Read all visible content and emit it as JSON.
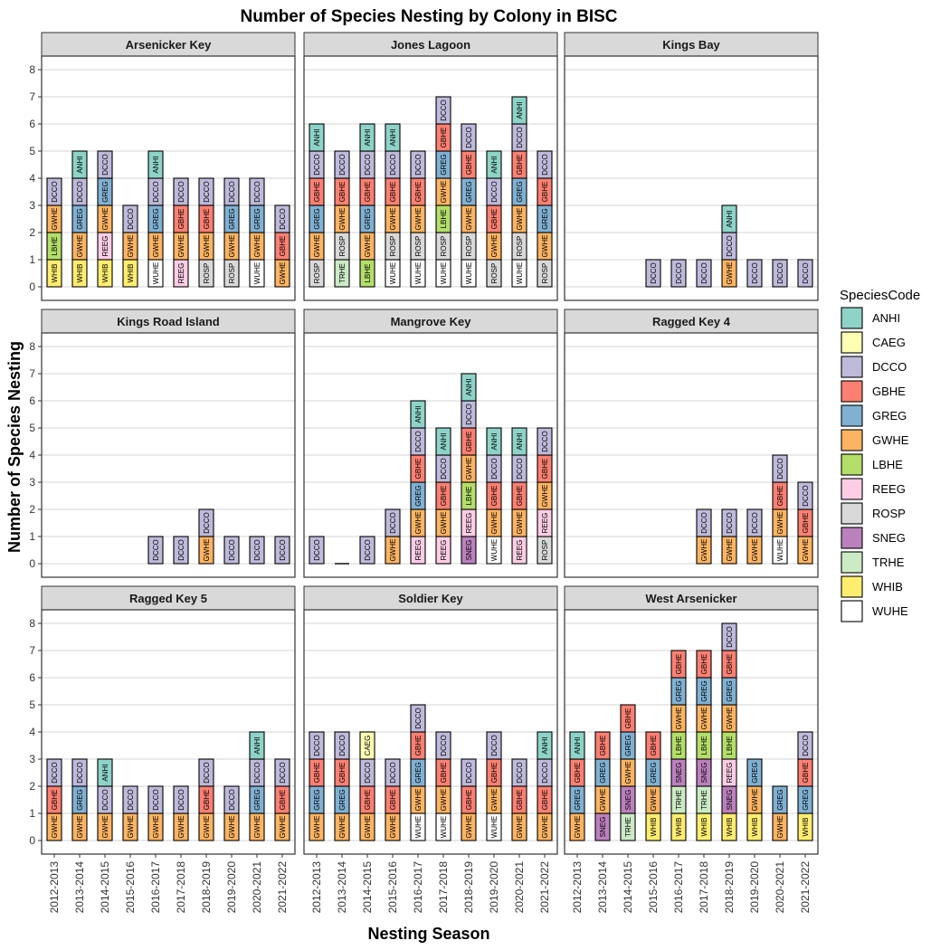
{
  "chart_data": {
    "type": "bar",
    "title": "Number of Species Nesting by Colony in BISC",
    "xlabel": "Nesting Season",
    "ylabel": "Number of Species Nesting",
    "ylim": [
      0,
      8
    ],
    "yticks": [
      "0",
      "1",
      "2",
      "3",
      "4",
      "5",
      "6",
      "7",
      "8"
    ],
    "seasons": [
      "2012-2013",
      "2013-2014",
      "2014-2015",
      "2015-2016",
      "2016-2017",
      "2017-2018",
      "2018-2019",
      "2019-2020",
      "2020-2021",
      "2021-2022"
    ],
    "legend_title": "SpeciesCode",
    "species": [
      {
        "code": "ANHI",
        "color": "#8dd3c7"
      },
      {
        "code": "CAEG",
        "color": "#ffffb3"
      },
      {
        "code": "DCCO",
        "color": "#bebada"
      },
      {
        "code": "GBHE",
        "color": "#fb8072"
      },
      {
        "code": "GREG",
        "color": "#80b1d3"
      },
      {
        "code": "GWHE",
        "color": "#fdb462"
      },
      {
        "code": "LBHE",
        "color": "#b3de69"
      },
      {
        "code": "REEG",
        "color": "#fccde5"
      },
      {
        "code": "ROSP",
        "color": "#d9d9d9"
      },
      {
        "code": "SNEG",
        "color": "#bc80bd"
      },
      {
        "code": "TRHE",
        "color": "#ccebc5"
      },
      {
        "code": "WHIB",
        "color": "#ffed6f"
      },
      {
        "code": "WUHE",
        "color": "#ffffff"
      }
    ],
    "panels": [
      {
        "name": "Arsenicker Key",
        "stacks": [
          [
            "WHIB",
            "LBHE",
            "GWHE",
            "DCCO"
          ],
          [
            "WHIB",
            "GWHE",
            "GREG",
            "DCCO",
            "ANHI"
          ],
          [
            "WHIB",
            "REEG",
            "GWHE",
            "GREG",
            "DCCO"
          ],
          [
            "WHIB",
            "GWHE",
            "DCCO"
          ],
          [
            "WUHE",
            "GWHE",
            "GREG",
            "DCCO",
            "ANHI"
          ],
          [
            "REEG",
            "GWHE",
            "GBHE",
            "DCCO"
          ],
          [
            "ROSP",
            "GWHE",
            "GBHE",
            "DCCO"
          ],
          [
            "ROSP",
            "GWHE",
            "GREG",
            "DCCO"
          ],
          [
            "WUHE",
            "GWHE",
            "GREG",
            "DCCO"
          ],
          [
            "GWHE",
            "GBHE",
            "DCCO"
          ]
        ]
      },
      {
        "name": "Jones Lagoon",
        "stacks": [
          [
            "ROSP",
            "GWHE",
            "GREG",
            "GBHE",
            "DCCO",
            "ANHI"
          ],
          [
            "TRHE",
            "ROSP",
            "GWHE",
            "GBHE",
            "DCCO"
          ],
          [
            "LBHE",
            "GWHE",
            "GREG",
            "GBHE",
            "DCCO",
            "ANHI"
          ],
          [
            "WUHE",
            "ROSP",
            "GWHE",
            "GBHE",
            "DCCO",
            "ANHI"
          ],
          [
            "WUHE",
            "ROSP",
            "GWHE",
            "GBHE",
            "DCCO"
          ],
          [
            "WUHE",
            "ROSP",
            "LBHE",
            "GWHE",
            "GREG",
            "GBHE",
            "DCCO"
          ],
          [
            "WUHE",
            "ROSP",
            "GWHE",
            "GREG",
            "GBHE",
            "DCCO"
          ],
          [
            "ROSP",
            "GWHE",
            "GBHE",
            "DCCO",
            "ANHI"
          ],
          [
            "WUHE",
            "ROSP",
            "GWHE",
            "GREG",
            "GBHE",
            "DCCO",
            "ANHI"
          ],
          [
            "ROSP",
            "GWHE",
            "GREG",
            "GBHE",
            "DCCO"
          ]
        ]
      },
      {
        "name": "Kings Bay",
        "stacks": [
          [],
          [],
          [],
          [
            "DCCO"
          ],
          [
            "DCCO"
          ],
          [
            "DCCO"
          ],
          [
            "GWHE",
            "DCCO",
            "ANHI"
          ],
          [
            "DCCO"
          ],
          [
            "DCCO"
          ],
          [
            "DCCO"
          ]
        ]
      },
      {
        "name": "Kings Road Island",
        "stacks": [
          [],
          [],
          [],
          [],
          [
            "DCCO"
          ],
          [
            "DCCO"
          ],
          [
            "GWHE",
            "DCCO"
          ],
          [
            "DCCO"
          ],
          [
            "DCCO"
          ],
          [
            "DCCO"
          ]
        ]
      },
      {
        "name": "Mangrove Key",
        "stacks": [
          [
            "DCCO"
          ],
          [],
          [
            "DCCO"
          ],
          [
            "GWHE",
            "DCCO"
          ],
          [
            "REEG",
            "GWHE",
            "GREG",
            "GBHE",
            "DCCO",
            "ANHI"
          ],
          [
            "REEG",
            "GWHE",
            "GBHE",
            "DCCO",
            "ANHI"
          ],
          [
            "SNEG",
            "REEG",
            "LBHE",
            "GWHE",
            "GBHE",
            "DCCO",
            "ANHI"
          ],
          [
            "WUHE",
            "GWHE",
            "GBHE",
            "DCCO",
            "ANHI"
          ],
          [
            "REEG",
            "GWHE",
            "GBHE",
            "DCCO",
            "ANHI"
          ],
          [
            "ROSP",
            "REEG",
            "GWHE",
            "GBHE",
            "DCCO"
          ]
        ]
      },
      {
        "name": "Ragged Key 4",
        "stacks": [
          [],
          [],
          [],
          [],
          [],
          [
            "GWHE",
            "DCCO"
          ],
          [
            "GWHE",
            "DCCO"
          ],
          [
            "GWHE",
            "DCCO"
          ],
          [
            "WUHE",
            "GWHE",
            "GBHE",
            "DCCO"
          ],
          [
            "GWHE",
            "GBHE",
            "DCCO"
          ]
        ]
      },
      {
        "name": "Ragged Key 5",
        "stacks": [
          [
            "GWHE",
            "GBHE",
            "DCCO"
          ],
          [
            "GWHE",
            "GREG",
            "DCCO"
          ],
          [
            "GWHE",
            "DCCO",
            "ANHI"
          ],
          [
            "GWHE",
            "DCCO"
          ],
          [
            "GWHE",
            "DCCO"
          ],
          [
            "GWHE",
            "DCCO"
          ],
          [
            "GWHE",
            "GBHE",
            "DCCO"
          ],
          [
            "GWHE",
            "DCCO"
          ],
          [
            "GWHE",
            "GREG",
            "DCCO",
            "ANHI"
          ],
          [
            "GWHE",
            "GBHE",
            "DCCO"
          ]
        ]
      },
      {
        "name": "Soldier Key",
        "stacks": [
          [
            "GWHE",
            "GREG",
            "GBHE",
            "DCCO"
          ],
          [
            "GWHE",
            "GREG",
            "GBHE",
            "DCCO"
          ],
          [
            "GWHE",
            "GBHE",
            "DCCO",
            "CAEG"
          ],
          [
            "GWHE",
            "GBHE",
            "DCCO"
          ],
          [
            "WUHE",
            "GWHE",
            "GREG",
            "GBHE",
            "DCCO"
          ],
          [
            "WUHE",
            "GWHE",
            "GBHE",
            "DCCO"
          ],
          [
            "GWHE",
            "GBHE",
            "DCCO"
          ],
          [
            "WUHE",
            "GWHE",
            "GBHE",
            "DCCO"
          ],
          [
            "GWHE",
            "GBHE",
            "DCCO"
          ],
          [
            "GWHE",
            "GBHE",
            "DCCO",
            "ANHI"
          ]
        ]
      },
      {
        "name": "West Arsenicker",
        "stacks": [
          [
            "GWHE",
            "GREG",
            "GBHE",
            "ANHI"
          ],
          [
            "SNEG",
            "GWHE",
            "GREG",
            "GBHE"
          ],
          [
            "TRHE",
            "SNEG",
            "GWHE",
            "GREG",
            "GBHE"
          ],
          [
            "WHIB",
            "GWHE",
            "GREG",
            "GBHE"
          ],
          [
            "WHIB",
            "TRHE",
            "SNEG",
            "LBHE",
            "GWHE",
            "GREG",
            "GBHE"
          ],
          [
            "WHIB",
            "TRHE",
            "SNEG",
            "LBHE",
            "GWHE",
            "GREG",
            "GBHE"
          ],
          [
            "WHIB",
            "SNEG",
            "REEG",
            "LBHE",
            "GWHE",
            "GREG",
            "GBHE",
            "DCCO"
          ],
          [
            "WHIB",
            "GWHE",
            "GREG"
          ],
          [
            "GWHE",
            "GREG"
          ],
          [
            "WHIB",
            "GREG",
            "GBHE",
            "DCCO"
          ]
        ]
      }
    ]
  }
}
